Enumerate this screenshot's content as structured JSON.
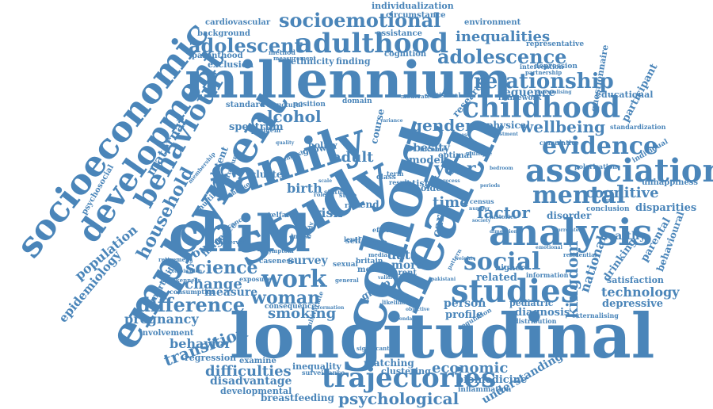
{
  "colors": {
    "word": "#4a85b9",
    "background": "#ffffff"
  },
  "words": {
    "longitudinal": "longitudinal",
    "millennium": "millennium",
    "cohort": "cohort",
    "health": "health",
    "study": "study",
    "family": "family",
    "child": "child",
    "employment": "employment",
    "socioeconomic": "socioeconomic",
    "development": "development",
    "behaviour": "behaviour",
    "association": "association",
    "analysis": "analysis",
    "studies": "studies",
    "childhood": "childhood",
    "adulthood": "adulthood",
    "trajectories": "trajectories",
    "socioemotional": "socioemotional",
    "adolescent": "adolescent",
    "adolescence": "adolescence",
    "relationship": "relationship",
    "inequalities": "inequalities",
    "evidence": "evidence",
    "mental": "mental",
    "social": "social",
    "work": "work",
    "woman": "woman",
    "difference": "difference",
    "science": "science",
    "smoking": "smoking",
    "transition": "transition",
    "gender": "gender",
    "wellbeing": "wellbeing",
    "cognitive": "cognitive",
    "factor": "factor",
    "kingdom": "kingdom",
    "national": "national",
    "economic": "economic",
    "psychological": "psychological",
    "difficulties": "difficulties",
    "household": "household",
    "maternal": "maternal",
    "population": "population",
    "epidemiology": "epidemiology",
    "alcohol": "alcohol",
    "adult": "adult",
    "year": "year",
    "time": "time",
    "risk": "risk",
    "change": "change",
    "young": "young",
    "birth": "birth",
    "obesity": "obesity",
    "model": "model",
    "data": "data",
    "more": "more",
    "survey": "survey",
    "pregnancy": "pregnancy",
    "behavior": "behavior",
    "measure": "measure",
    "person": "person",
    "profile": "profile",
    "technology": "technology",
    "depressive": "depressive",
    "drinking": "drinking",
    "parental": "parental",
    "behavioural": "behavioural",
    "healthy": "healthy",
    "disparities": "disparities",
    "unhappiness": "unhappiness",
    "participant": "participant",
    "questionnaire": "questionnaire",
    "disorder": "disorder",
    "related": "related",
    "diagnosis": "diagnosis",
    "pediatric": "pediatric",
    "satisfaction": "satisfaction",
    "understanding": "understanding",
    "biomedicine": "biomedicine",
    "inflammation": "inflammation",
    "breastfeeding": "breastfeeding",
    "disadvantage": "disadvantage",
    "developmental": "developmental",
    "inequality": "inequality",
    "clustering": "clustering",
    "matching": "matching",
    "regression": "regression",
    "involvement": "involvement",
    "mortality": "mortality",
    "influence": "influence",
    "spectrum": "spectrum",
    "latent": "latent",
    "standard": "standard",
    "physical": "physical",
    "course": "course",
    "cluster": "cluster",
    "policy": "policy",
    "growth": "growth",
    "autism": "autism",
    "optimal": "optimal",
    "older": "older",
    "trend": "trend",
    "care": "care",
    "score": "score",
    "group": "group",
    "parent": "parent",
    "mother": "mother",
    "sequence": "sequence",
    "research": "research",
    "framework": "framework",
    "educational": "educational",
    "conclusion": "conclusion",
    "individual": "individual",
    "polarisation": "polarisation",
    "standardization": "standardization",
    "cumulative": "cumulative",
    "depression": "depression",
    "intervention": "intervention",
    "partnership": "partnership",
    "representative": "representative",
    "environment": "environment",
    "individualization": "individualization",
    "circumstance": "circumstance",
    "assistance": "assistance",
    "cognition": "cognition",
    "finding": "finding",
    "ethnicity": "ethnicity",
    "exclusion": "exclusion",
    "parenthood": "parenthood",
    "background": "background",
    "method": "method",
    "cardiovascular": "cardiovascular",
    "psychosocial": "psychosocial",
    "membership": "membership",
    "structure": "structure",
    "marker": "marker",
    "multilevel": "multilevel",
    "welfare": "welfare",
    "cancer": "cancer",
    "examine": "examine",
    "exposure": "exposure",
    "consumption": "consumption",
    "consequence": "consequence",
    "caseness": "caseness",
    "sexual": "sexual",
    "britain": "britain",
    "higher": "higher",
    "information": "information",
    "externalising": "externalising",
    "regulation": "regulation",
    "distribution": "distribution",
    "surveillance": "surveillance",
    "significant": "significant",
    "multivariate": "multivariate",
    "internalising": "internalising",
    "measurement": "measurement",
    "structural": "structural",
    "position": "position",
    "domain": "domain",
    "statistical": "statistical",
    "moderate": "moderate",
    "class": "class",
    "term": "term",
    "result": "result",
    "race": "race",
    "state": "state",
    "level": "level",
    "self": "self",
    "index": "index",
    "body": "body",
    "great": "great",
    "income": "income",
    "media": "media",
    "english": "english",
    "census": "census",
    "number": "number",
    "bedroom": "bedroom",
    "histories": "histories",
    "pattern": "pattern",
    "role": "role",
    "multiple": "multiple",
    "effect": "effect",
    "status": "status",
    "problem": "problem",
    "retirement": "retirement",
    "observed": "observed",
    "symptom": "symptom",
    "drunkenness": "drunkenness",
    "combination": "combination",
    "general": "general",
    "formation": "formation",
    "likelihood": "likelihood",
    "secondary": "secondary",
    "objective": "objective",
    "pakistani": "pakistani",
    "dimension": "dimension",
    "residential": "residential",
    "emotional": "emotional",
    "correlates": "correlates",
    "validity": "validity",
    "weight": "weight",
    "mental_health": "health",
    "society": "society",
    "variance": "variance",
    "adjustment": "adjustment",
    "periods": "periods",
    "quality": "quality",
    "scale": "scale",
    "process": "process",
    "access": "access"
  }
}
